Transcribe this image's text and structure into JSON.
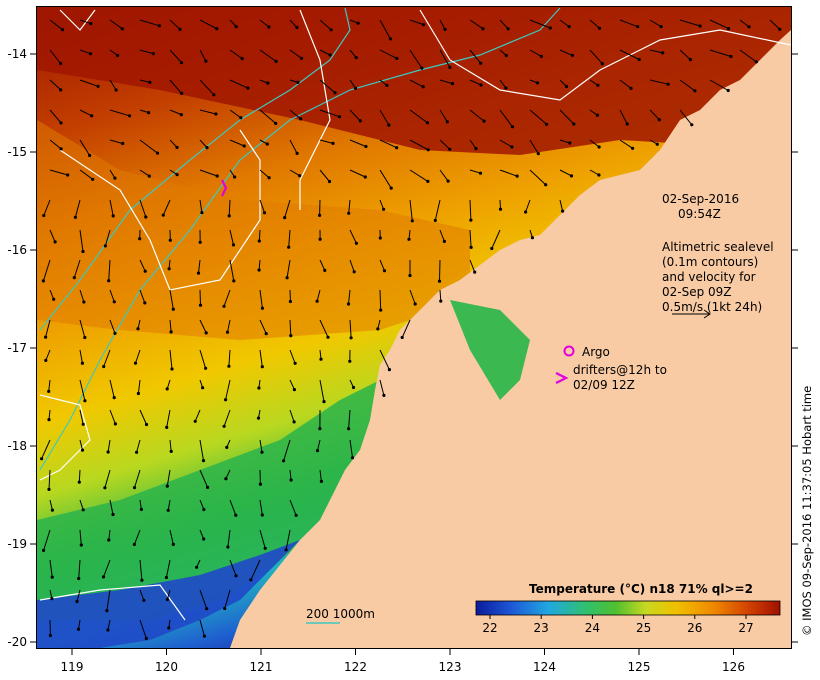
{
  "map": {
    "lon_ticks": [
      "119",
      "120",
      "121",
      "122",
      "123",
      "124",
      "125",
      "126"
    ],
    "lat_ticks": [
      "-14",
      "-15",
      "-16",
      "-17",
      "-18",
      "-19",
      "-20"
    ]
  },
  "annotations": {
    "date": "02-Sep-2016",
    "time": "09:54Z",
    "legend_lines": [
      "Altimetric sealevel",
      "(0.1m contours)",
      "and velocity for",
      "02-Sep 09Z",
      "0.5m/s (1kt 24h)"
    ],
    "argo_label": "Argo",
    "drifter_lines": [
      "drifters@12h to",
      "02/09 12Z"
    ],
    "depth_legend": "200  1000m"
  },
  "colorbar": {
    "title": "Temperature (°C) n18 71% ql>=2",
    "ticks": [
      "22",
      "23",
      "24",
      "25",
      "26",
      "27"
    ]
  },
  "credit": "© IMOS 09-Sep-2016 11:37:05 Hobart time",
  "colors": {
    "land": "#f8c8a0",
    "sea_warm": "#a01a00",
    "sea_mid": "#e89a00",
    "sea_cool": "#22b14c",
    "sea_cold": "#1a3ec8",
    "bathy_line": "#3ec8c0",
    "contour": "#ffffff",
    "argo": "#e000e0"
  }
}
